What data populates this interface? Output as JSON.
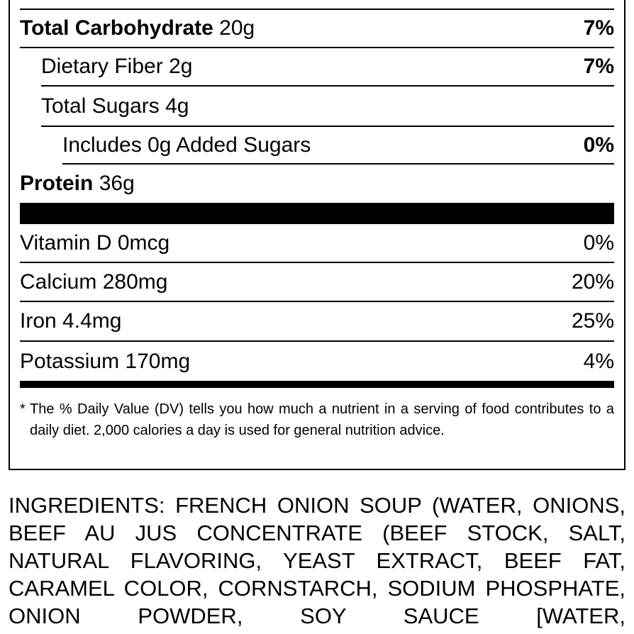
{
  "nutrients": [
    {
      "name": "Total Carbohydrate",
      "amount": "20g",
      "dv": "7%"
    },
    {
      "name": "Dietary Fiber",
      "amount": "2g",
      "dv": "7%"
    },
    {
      "name": "Total Sugars",
      "amount": "4g"
    },
    {
      "name": "Includes 0g Added Sugars",
      "dv": "0%"
    },
    {
      "name": "Protein",
      "amount": "36g"
    }
  ],
  "vitamins": [
    {
      "name": "Vitamin D",
      "amount": "0mcg",
      "dv": "0%"
    },
    {
      "name": "Calcium",
      "amount": "280mg",
      "dv": "20%"
    },
    {
      "name": "Iron",
      "amount": "4.4mg",
      "dv": "25%"
    },
    {
      "name": "Potassium",
      "amount": "170mg",
      "dv": "4%"
    }
  ],
  "footnote": {
    "marker": "*",
    "text": "The % Daily Value (DV) tells you how much a nutrient in a serving of food contributes to a daily diet. 2,000 calories a day is used for general nutrition advice."
  },
  "ingredients": "INGREDIENTS: FRENCH ONION SOUP (WATER, ONIONS, BEEF AU JUS CONCENTRATE (BEEF STOCK, SALT, NATURAL FLAVORING, YEAST EXTRACT, BEEF FAT, CARAMEL COLOR, CORNSTARCH, SODIUM PHOSPHATE, ONION POWDER, SOY SAUCE [WATER,"
}
